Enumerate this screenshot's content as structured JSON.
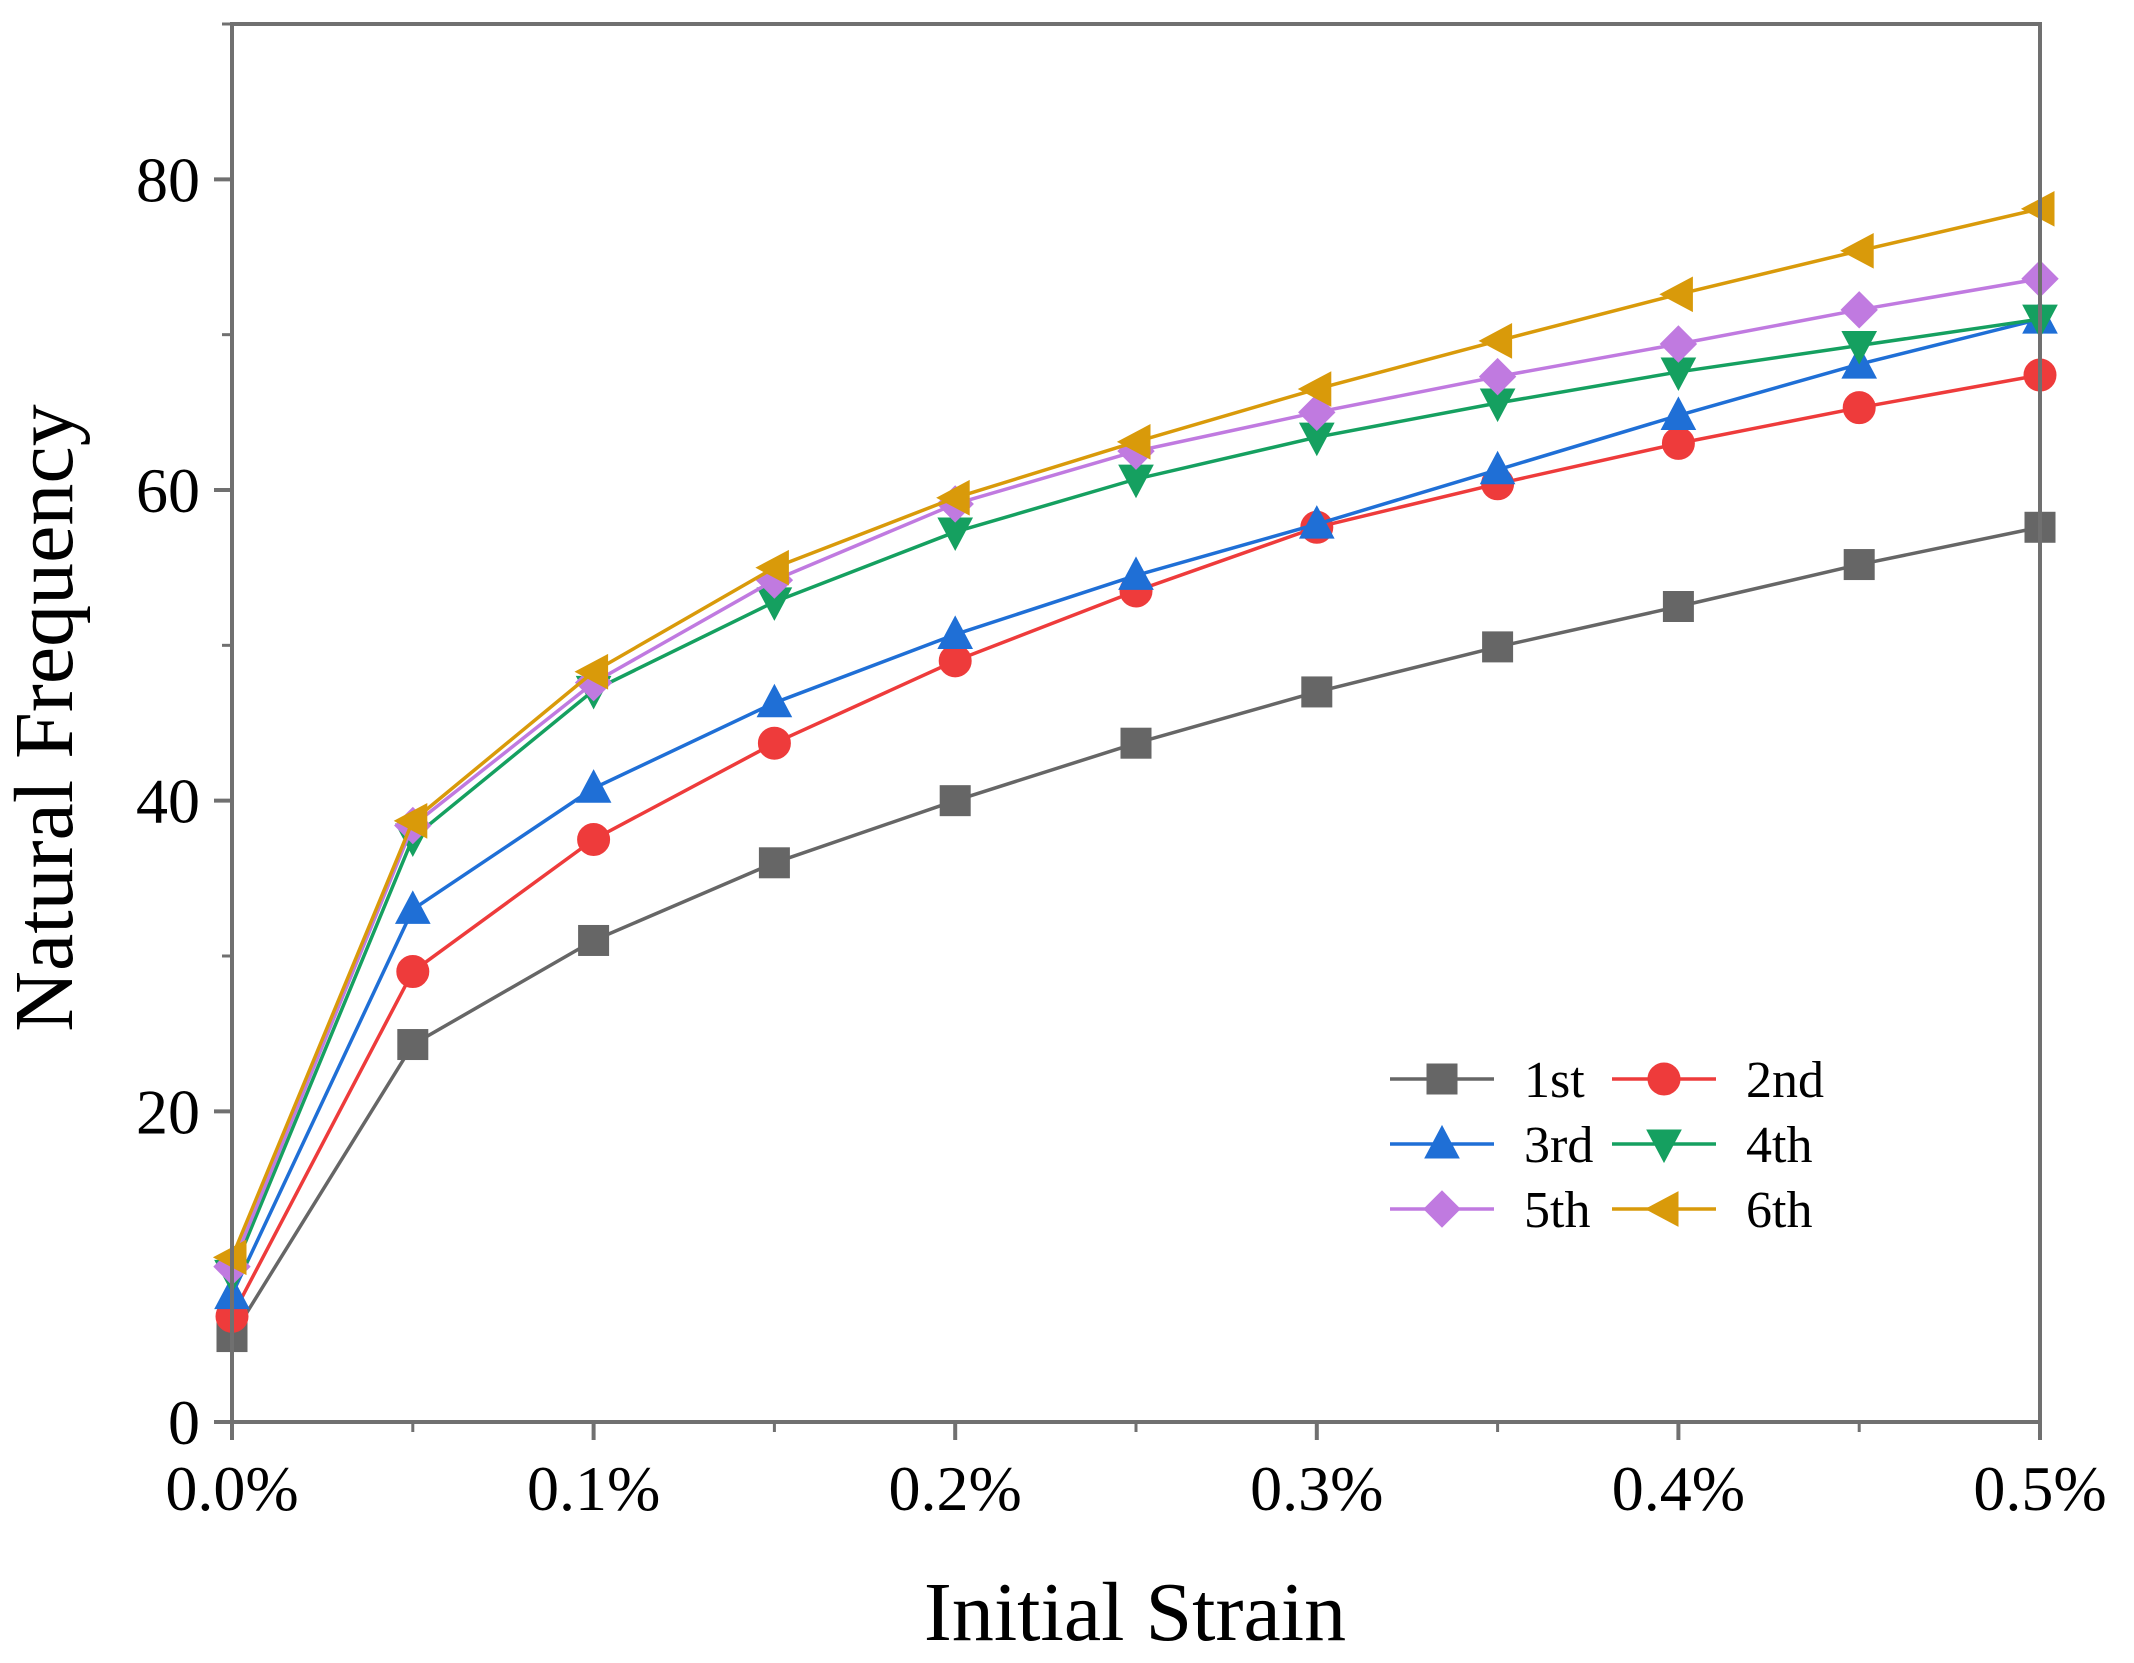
{
  "chart_data": {
    "type": "line",
    "title": "",
    "xlabel": "Initial Strain",
    "ylabel": "Natural Frequency",
    "x": [
      0.0,
      0.05,
      0.1,
      0.15,
      0.2,
      0.25,
      0.3,
      0.35,
      0.4,
      0.45,
      0.5
    ],
    "xlim": [
      0.0,
      0.5
    ],
    "ylim": [
      0,
      90
    ],
    "xticks": [
      0.0,
      0.1,
      0.2,
      0.3,
      0.4,
      0.5
    ],
    "xtick_labels": [
      "0.0%",
      "0.1%",
      "0.2%",
      "0.3%",
      "0.4%",
      "0.5%"
    ],
    "yticks": [
      0,
      20,
      40,
      60,
      80
    ],
    "ytick_labels": [
      "0",
      "20",
      "40",
      "60",
      "80"
    ],
    "grid": false,
    "legend_position": "bottom-right",
    "series": [
      {
        "name": "1st",
        "color": "#666666",
        "marker": "square",
        "values": [
          5.5,
          24.3,
          31.0,
          36.0,
          40.0,
          43.7,
          47.0,
          49.9,
          52.5,
          55.2,
          57.6
        ]
      },
      {
        "name": "2nd",
        "color": "#ee3b3b",
        "marker": "circle",
        "values": [
          6.8,
          29.0,
          37.5,
          43.7,
          49.0,
          53.5,
          57.6,
          60.4,
          63.0,
          65.3,
          67.4
        ]
      },
      {
        "name": "3rd",
        "color": "#1f6fd6",
        "marker": "triangle-up",
        "values": [
          8.2,
          33.0,
          40.8,
          46.3,
          50.7,
          54.5,
          57.8,
          61.3,
          64.8,
          68.1,
          71.0
        ]
      },
      {
        "name": "4th",
        "color": "#15a060",
        "marker": "triangle-down",
        "values": [
          9.5,
          37.6,
          47.1,
          52.8,
          57.3,
          60.7,
          63.4,
          65.6,
          67.6,
          69.3,
          71.0
        ]
      },
      {
        "name": "5th",
        "color": "#c07ae0",
        "marker": "diamond",
        "values": [
          10.0,
          38.4,
          47.6,
          54.2,
          59.1,
          62.5,
          65.0,
          67.3,
          69.4,
          71.6,
          73.6
        ]
      },
      {
        "name": "6th",
        "color": "#d99a0a",
        "marker": "triangle-left",
        "values": [
          10.6,
          38.7,
          48.3,
          55.0,
          59.5,
          63.1,
          66.5,
          69.6,
          72.6,
          75.4,
          78.1
        ]
      }
    ]
  }
}
